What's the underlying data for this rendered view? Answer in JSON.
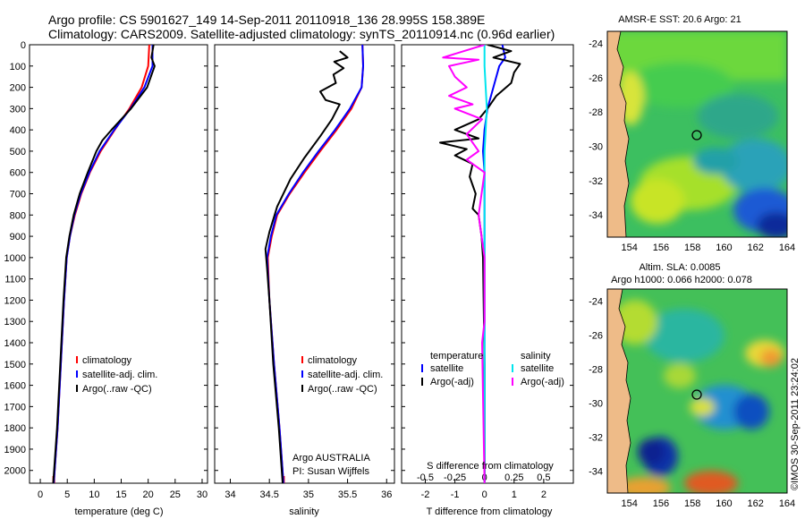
{
  "header": {
    "line1": "Argo profile: CS 5901627_149 14-Sep-2011 20110918_136 28.995S 158.389E",
    "line2": "Climatology: CARS2009. Satellite-adjusted climatology: synTS_20110914.nc (0.96d earlier)"
  },
  "colors": {
    "climatology": "#ff0000",
    "satellite": "#0000ff",
    "argo": "#000000",
    "sat_salinity": "#00e5ee",
    "argo_salinity": "#ff00ff"
  },
  "chart_data": [
    {
      "id": "temperature",
      "type": "line",
      "xlabel": "temperature (deg C)",
      "ylabel": "",
      "xlim": [
        -2,
        31
      ],
      "ylim": [
        2060,
        0
      ],
      "xticks": [
        0,
        5,
        10,
        15,
        20,
        25,
        30
      ],
      "yticks": [
        0,
        100,
        200,
        300,
        400,
        500,
        600,
        700,
        800,
        900,
        1000,
        1100,
        1200,
        1300,
        1400,
        1500,
        1600,
        1700,
        1800,
        1900,
        2000
      ],
      "legend": [
        "climatology",
        "satellite-adj. clim.",
        "Argo(..raw -QC)"
      ],
      "series": [
        {
          "name": "climatology",
          "color": "#ff0000",
          "points": [
            [
              20.2,
              0
            ],
            [
              20.0,
              100
            ],
            [
              18.8,
              200
            ],
            [
              16.5,
              300
            ],
            [
              13.8,
              400
            ],
            [
              11.2,
              500
            ],
            [
              9.2,
              600
            ],
            [
              7.6,
              700
            ],
            [
              6.4,
              800
            ],
            [
              5.5,
              900
            ],
            [
              4.9,
              1000
            ],
            [
              4.4,
              1200
            ],
            [
              3.8,
              1500
            ],
            [
              3.2,
              1800
            ],
            [
              2.5,
              2060
            ]
          ]
        },
        {
          "name": "satellite-adj. clim.",
          "color": "#0000ff",
          "points": [
            [
              20.8,
              0
            ],
            [
              20.8,
              100
            ],
            [
              19.3,
              200
            ],
            [
              16.7,
              300
            ],
            [
              13.7,
              400
            ],
            [
              11.0,
              500
            ],
            [
              9.1,
              600
            ],
            [
              7.5,
              700
            ],
            [
              6.3,
              800
            ],
            [
              5.5,
              900
            ],
            [
              4.9,
              1000
            ],
            [
              4.4,
              1200
            ],
            [
              3.8,
              1500
            ],
            [
              3.2,
              1800
            ],
            [
              2.5,
              2060
            ]
          ]
        },
        {
          "name": "Argo(..raw -QC)",
          "color": "#000000",
          "points": [
            [
              21.0,
              0
            ],
            [
              20.6,
              60
            ],
            [
              21.2,
              100
            ],
            [
              19.8,
              200
            ],
            [
              16.8,
              300
            ],
            [
              13.2,
              400
            ],
            [
              11.5,
              450
            ],
            [
              10.4,
              500
            ],
            [
              8.8,
              600
            ],
            [
              7.3,
              700
            ],
            [
              6.2,
              800
            ],
            [
              5.4,
              900
            ],
            [
              4.8,
              1000
            ],
            [
              4.3,
              1200
            ],
            [
              3.7,
              1500
            ],
            [
              3.1,
              1800
            ],
            [
              2.4,
              2060
            ]
          ]
        }
      ]
    },
    {
      "id": "salinity",
      "type": "line",
      "xlabel": "salinity",
      "ylabel": "",
      "xlim": [
        33.8,
        36.1
      ],
      "ylim": [
        2060,
        0
      ],
      "xticks": [
        34,
        34.5,
        35,
        35.5,
        36
      ],
      "legend": [
        "climatology",
        "satellite-adj. clim.",
        "Argo(..raw -QC)"
      ],
      "annotations": [
        "Argo AUSTRALIA",
        "PI: Susan Wijffels"
      ],
      "series": [
        {
          "name": "climatology",
          "color": "#ff0000",
          "points": [
            [
              35.69,
              0
            ],
            [
              35.7,
              100
            ],
            [
              35.68,
              200
            ],
            [
              35.55,
              300
            ],
            [
              35.36,
              400
            ],
            [
              35.15,
              500
            ],
            [
              34.95,
              600
            ],
            [
              34.76,
              700
            ],
            [
              34.6,
              800
            ],
            [
              34.53,
              900
            ],
            [
              34.48,
              1000
            ],
            [
              34.5,
              1200
            ],
            [
              34.56,
              1500
            ],
            [
              34.63,
              1800
            ],
            [
              34.68,
              2060
            ]
          ]
        },
        {
          "name": "satellite-adj. clim.",
          "color": "#0000ff",
          "points": [
            [
              35.69,
              0
            ],
            [
              35.7,
              100
            ],
            [
              35.68,
              200
            ],
            [
              35.53,
              300
            ],
            [
              35.34,
              400
            ],
            [
              35.13,
              500
            ],
            [
              34.93,
              600
            ],
            [
              34.75,
              700
            ],
            [
              34.59,
              800
            ],
            [
              34.52,
              900
            ],
            [
              34.47,
              1000
            ],
            [
              34.5,
              1200
            ],
            [
              34.56,
              1500
            ],
            [
              34.63,
              1800
            ],
            [
              34.68,
              2060
            ]
          ]
        },
        {
          "name": "Argo(..raw -QC)",
          "color": "#000000",
          "points": [
            [
              35.4,
              30
            ],
            [
              35.5,
              60
            ],
            [
              35.33,
              80
            ],
            [
              35.45,
              110
            ],
            [
              35.32,
              140
            ],
            [
              35.35,
              180
            ],
            [
              35.15,
              220
            ],
            [
              35.22,
              260
            ],
            [
              35.4,
              280
            ],
            [
              35.3,
              350
            ],
            [
              35.15,
              430
            ],
            [
              34.95,
              530
            ],
            [
              34.77,
              630
            ],
            [
              34.6,
              760
            ],
            [
              34.5,
              880
            ],
            [
              34.45,
              960
            ],
            [
              34.47,
              1050
            ],
            [
              34.5,
              1200
            ],
            [
              34.55,
              1500
            ],
            [
              34.62,
              1800
            ],
            [
              34.67,
              2060
            ]
          ]
        }
      ]
    },
    {
      "id": "difference",
      "type": "line",
      "xlabel": "T difference from climatology",
      "xlabel_top": "S difference from climatology",
      "xlim": [
        -2.8,
        3
      ],
      "ylim": [
        2060,
        0
      ],
      "xticks": [
        -2,
        -1,
        0,
        1,
        2
      ],
      "xticks_top": [
        -0.5,
        -0.25,
        0,
        0.25,
        0.5
      ],
      "legend": [
        "temperature",
        "satellite",
        "Argo(-adj)",
        "salinity",
        "satellite",
        "Argo(-adj)"
      ],
      "series": [
        {
          "name": "T satellite",
          "color": "#0000ff",
          "points": [
            [
              0.6,
              0
            ],
            [
              0.7,
              60
            ],
            [
              0.5,
              100
            ],
            [
              0.3,
              200
            ],
            [
              0.1,
              300
            ],
            [
              0.0,
              400
            ],
            [
              -0.05,
              500
            ],
            [
              0.0,
              600
            ],
            [
              0.0,
              800
            ],
            [
              0.0,
              1000
            ],
            [
              0.0,
              1500
            ],
            [
              0.0,
              2060
            ]
          ]
        },
        {
          "name": "T Argo(-adj)",
          "color": "#000000",
          "points": [
            [
              0.1,
              0
            ],
            [
              0.9,
              30
            ],
            [
              0.3,
              60
            ],
            [
              1.2,
              90
            ],
            [
              1.0,
              130
            ],
            [
              0.9,
              180
            ],
            [
              0.4,
              240
            ],
            [
              0.1,
              300
            ],
            [
              -0.2,
              350
            ],
            [
              -1.0,
              400
            ],
            [
              -0.2,
              440
            ],
            [
              -1.5,
              460
            ],
            [
              -0.6,
              490
            ],
            [
              -1.0,
              520
            ],
            [
              -0.4,
              560
            ],
            [
              -0.5,
              620
            ],
            [
              -0.3,
              700
            ],
            [
              -0.4,
              770
            ],
            [
              -0.2,
              800
            ],
            [
              -0.1,
              900
            ],
            [
              -0.05,
              1000
            ],
            [
              0.0,
              1500
            ],
            [
              0.0,
              2060
            ]
          ]
        },
        {
          "name": "S satellite",
          "color": "#00e5ee",
          "points": [
            [
              0.0,
              0
            ],
            [
              0.0,
              100
            ],
            [
              0.02,
              300
            ],
            [
              0.0,
              500
            ],
            [
              0.0,
              1000
            ],
            [
              0.0,
              2060
            ]
          ]
        },
        {
          "name": "S Argo(-adj)",
          "color": "#ff00ff",
          "points": [
            [
              0.0,
              0
            ],
            [
              -0.35,
              60
            ],
            [
              -0.05,
              70
            ],
            [
              -0.3,
              100
            ],
            [
              -0.25,
              150
            ],
            [
              -0.15,
              200
            ],
            [
              -0.3,
              240
            ],
            [
              -0.1,
              280
            ],
            [
              -0.25,
              300
            ],
            [
              -0.02,
              350
            ],
            [
              -0.15,
              420
            ],
            [
              -0.05,
              500
            ],
            [
              -0.15,
              540
            ],
            [
              0.0,
              600
            ],
            [
              -0.05,
              800
            ],
            [
              0.0,
              1000
            ],
            [
              0.0,
              1300
            ],
            [
              -0.02,
              1400
            ],
            [
              0.0,
              2060
            ]
          ]
        }
      ]
    },
    {
      "id": "sst_map",
      "type": "heatmap",
      "title": "AMSR-E SST: 20.6  Argo: 21",
      "xticks": [
        154,
        156,
        158,
        160,
        162,
        164
      ],
      "yticks": [
        -24,
        -26,
        -28,
        -30,
        -32,
        -34
      ],
      "xlim": [
        152.6,
        164
      ],
      "ylim": [
        -35.3,
        -23.3
      ],
      "marker": [
        158.389,
        -28.995
      ]
    },
    {
      "id": "sla_map",
      "type": "heatmap",
      "title": "Altim. SLA: 0.0085",
      "subtitle": "Argo h1000: 0.066 h2000: 0.078",
      "xticks": [
        154,
        156,
        158,
        160,
        162,
        164
      ],
      "yticks": [
        -24,
        -26,
        -28,
        -30,
        -32,
        -34
      ],
      "xlim": [
        152.6,
        164
      ],
      "ylim": [
        -35.3,
        -23.3
      ],
      "marker": [
        158.389,
        -28.995
      ]
    }
  ],
  "credit": "©IMOS 30-Sep-2011 23:24:02"
}
